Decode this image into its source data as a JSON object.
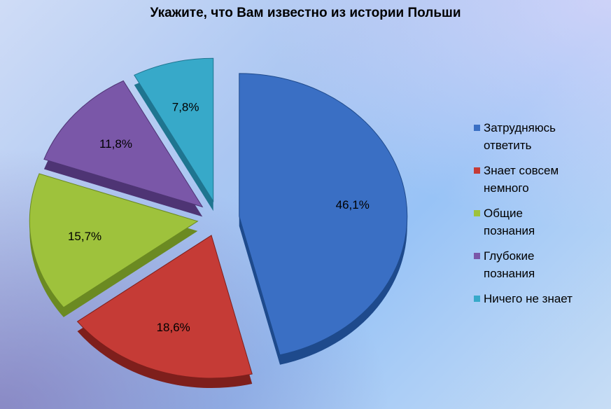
{
  "chart_data": {
    "type": "pie",
    "title": "Укажите, что Вам известно  из истории Польши",
    "categories": [
      "Затрудняюсь ответить",
      "Знает совсем немного",
      "Общие познания",
      "Глубокие познания",
      "Ничего не знает"
    ],
    "legend_lines": [
      [
        "Затрудняюсь",
        "ответить"
      ],
      [
        "Знает совсем",
        "немного"
      ],
      [
        "Общие",
        "познания"
      ],
      [
        "Глубокие",
        "познания"
      ],
      [
        "Ничего не знает"
      ]
    ],
    "values": [
      46.1,
      18.6,
      15.7,
      11.8,
      7.8
    ],
    "labels": [
      "46,1%",
      "18,6%",
      "15,7%",
      "11,8%",
      "7,8%"
    ],
    "colors": [
      "#3a6fc4",
      "#c53b36",
      "#9ec23c",
      "#7a57a8",
      "#37a9c9"
    ],
    "dark_colors": [
      "#1e4a8c",
      "#7e1f1c",
      "#6b8a22",
      "#4e3474",
      "#1f7590"
    ],
    "legend_position": "right",
    "exploded": true
  }
}
